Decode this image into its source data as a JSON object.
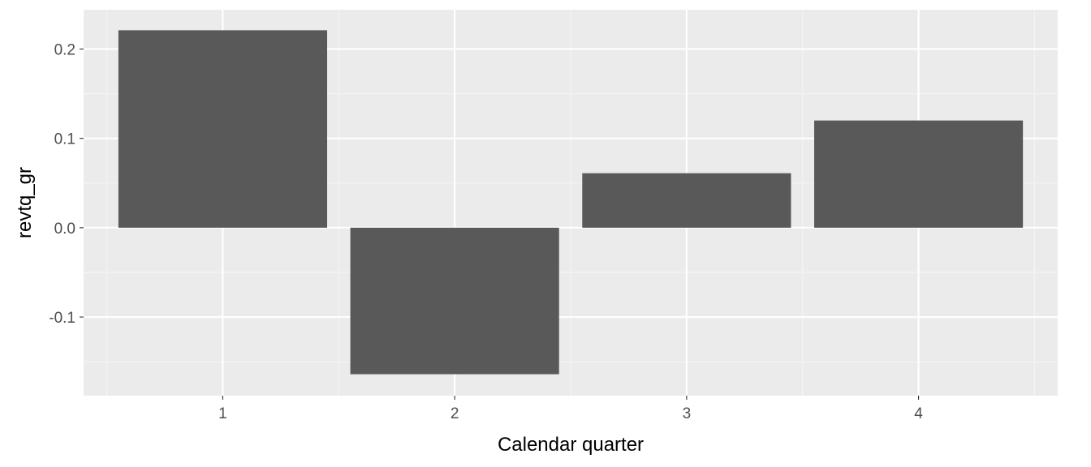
{
  "chart_data": {
    "type": "bar",
    "title": "",
    "xlabel": "Calendar quarter",
    "ylabel": "revtq_gr",
    "categories": [
      "1",
      "2",
      "3",
      "4"
    ],
    "values": [
      0.221,
      -0.164,
      0.061,
      0.12
    ],
    "ylim": [
      -0.188,
      0.244
    ],
    "yticks": [
      {
        "value": -0.1,
        "label": "-0.1"
      },
      {
        "value": 0.0,
        "label": "0.0"
      },
      {
        "value": 0.1,
        "label": "0.1"
      },
      {
        "value": 0.2,
        "label": "0.2"
      }
    ],
    "grid": true,
    "legend": "none",
    "colors": {
      "panel_background": "#ebebeb",
      "grid_major": "#ffffff",
      "grid_minor": "#f5f5f5",
      "bar_fill": "#595959",
      "tick_mark": "#333333"
    }
  }
}
